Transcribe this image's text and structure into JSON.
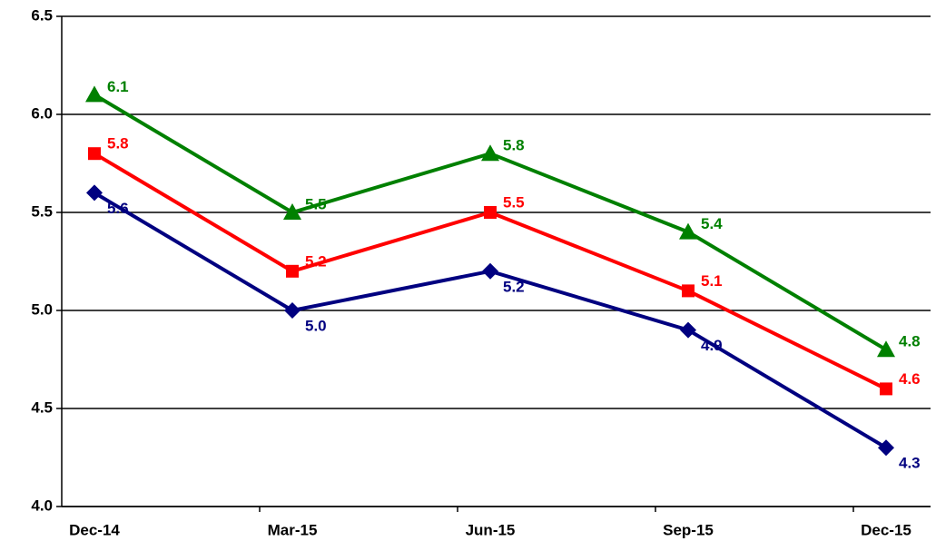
{
  "chart_data": {
    "type": "line",
    "categories": [
      "Dec-14",
      "Mar-15",
      "Jun-15",
      "Sep-15",
      "Dec-15"
    ],
    "series": [
      {
        "color": "#000080",
        "marker": "diamond",
        "values": [
          5.6,
          5.0,
          5.2,
          4.9,
          4.3
        ],
        "value_labels": [
          "5.6",
          "5.0",
          "5.2",
          "4.9",
          "4.3"
        ]
      },
      {
        "color": "#ff0000",
        "marker": "square",
        "values": [
          5.8,
          5.2,
          5.5,
          5.1,
          4.6
        ]
      },
      {
        "color": "#008000",
        "marker": "triangle",
        "values": [
          6.1,
          5.5,
          5.8,
          5.4,
          4.8
        ]
      }
    ],
    "ylim": [
      4.0,
      6.5
    ],
    "yticks": [
      {
        "value": 4.0,
        "label": "4.0"
      },
      4.5,
      {
        "value": 5.0,
        "label": "5.0"
      },
      5.5,
      {
        "value": 6.0,
        "label": "6.0"
      },
      6.5
    ],
    "grid": true
  }
}
